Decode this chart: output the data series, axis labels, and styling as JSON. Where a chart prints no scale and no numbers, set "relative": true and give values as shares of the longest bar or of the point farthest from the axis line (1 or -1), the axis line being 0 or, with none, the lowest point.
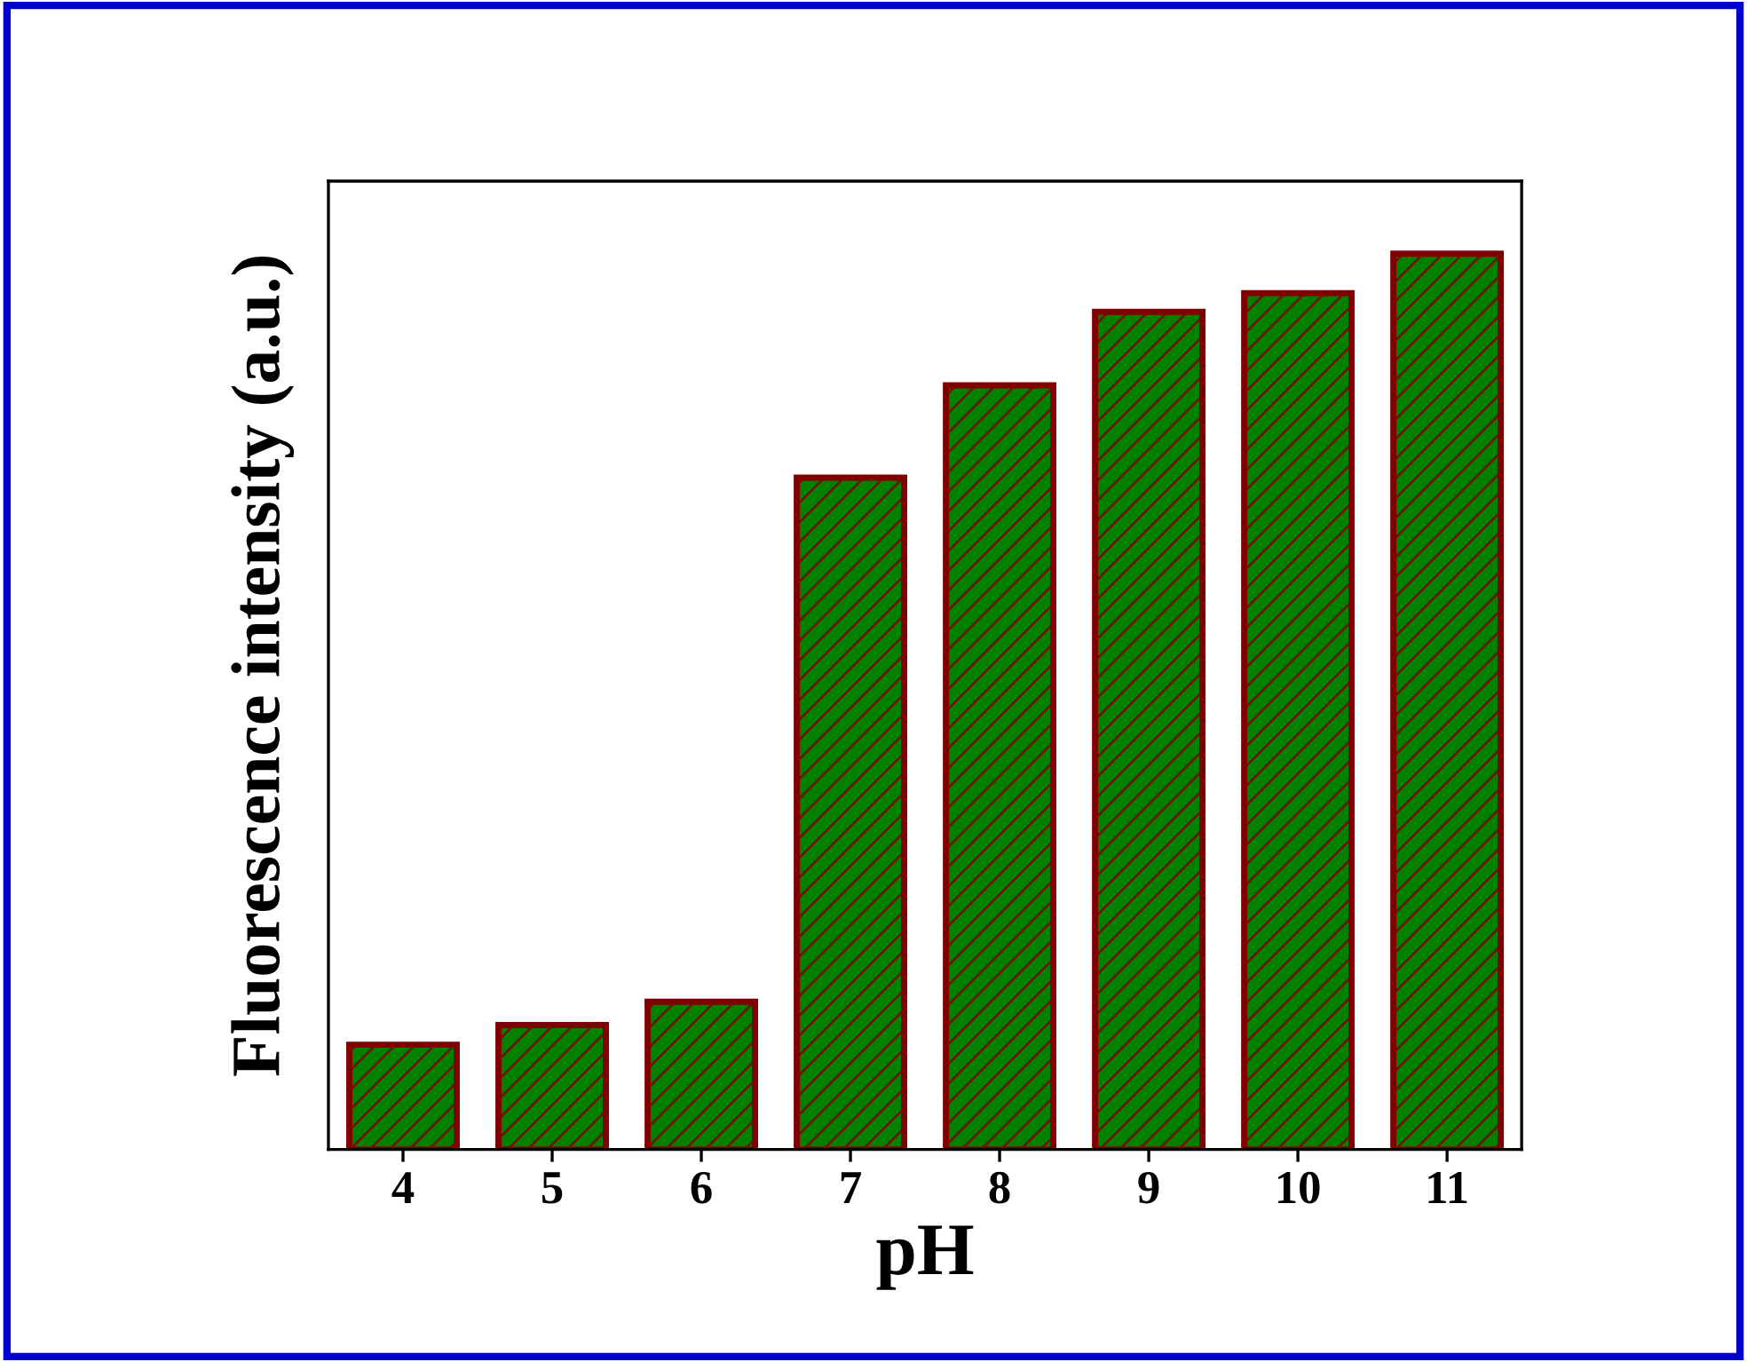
{
  "chart_data": {
    "type": "bar",
    "relative": true,
    "xlabel": "pH",
    "ylabel": "Fluorescence intensity (a.u.)",
    "categories": [
      "4",
      "5",
      "6",
      "7",
      "8",
      "9",
      "10",
      "11"
    ],
    "values": [
      0.117,
      0.139,
      0.165,
      0.75,
      0.853,
      0.935,
      0.956,
      1.0
    ],
    "color": "#008000",
    "grid": false,
    "legend": false
  }
}
